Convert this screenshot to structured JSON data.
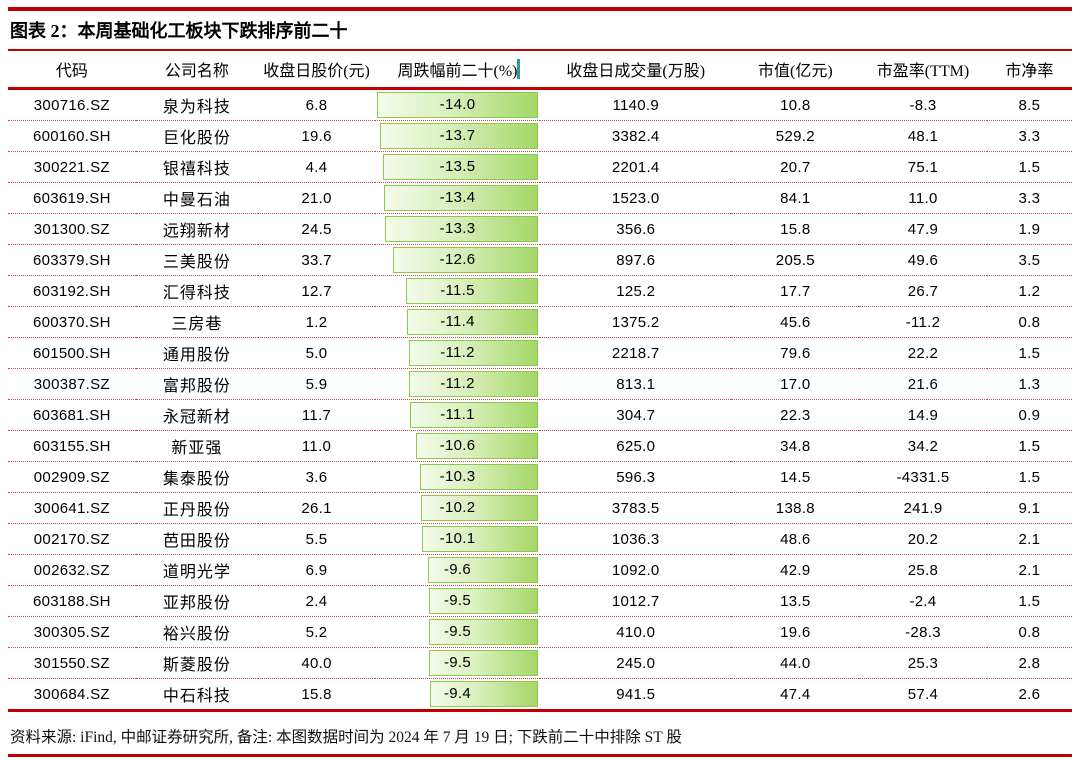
{
  "chart_data": {
    "type": "table",
    "title": "图表 2：本周基础化工板块下跌排序前二十",
    "columns": [
      "代码",
      "公司名称",
      "收盘日股价(元)",
      "周跌幅前二十(%)",
      "收盘日成交量(万股)",
      "市值(亿元)",
      "市盈率(TTM)",
      "市净率"
    ],
    "bar_column_index": 3,
    "bar_scale_max_abs": 14.0,
    "bar_direction": "anchored-right-grows-left",
    "rows": [
      [
        "300716.SZ",
        "泉为科技",
        "6.8",
        "-14.0",
        "1140.9",
        "10.8",
        "-8.3",
        "8.5"
      ],
      [
        "600160.SH",
        "巨化股份",
        "19.6",
        "-13.7",
        "3382.4",
        "529.2",
        "48.1",
        "3.3"
      ],
      [
        "300221.SZ",
        "银禧科技",
        "4.4",
        "-13.5",
        "2201.4",
        "20.7",
        "75.1",
        "1.5"
      ],
      [
        "603619.SH",
        "中曼石油",
        "21.0",
        "-13.4",
        "1523.0",
        "84.1",
        "11.0",
        "3.3"
      ],
      [
        "301300.SZ",
        "远翔新材",
        "24.5",
        "-13.3",
        "356.6",
        "15.8",
        "47.9",
        "1.9"
      ],
      [
        "603379.SH",
        "三美股份",
        "33.7",
        "-12.6",
        "897.6",
        "205.5",
        "49.6",
        "3.5"
      ],
      [
        "603192.SH",
        "汇得科技",
        "12.7",
        "-11.5",
        "125.2",
        "17.7",
        "26.7",
        "1.2"
      ],
      [
        "600370.SH",
        "三房巷",
        "1.2",
        "-11.4",
        "1375.2",
        "45.6",
        "-11.2",
        "0.8"
      ],
      [
        "601500.SH",
        "通用股份",
        "5.0",
        "-11.2",
        "2218.7",
        "79.6",
        "22.2",
        "1.5"
      ],
      [
        "300387.SZ",
        "富邦股份",
        "5.9",
        "-11.2",
        "813.1",
        "17.0",
        "21.6",
        "1.3"
      ],
      [
        "603681.SH",
        "永冠新材",
        "11.7",
        "-11.1",
        "304.7",
        "22.3",
        "14.9",
        "0.9"
      ],
      [
        "603155.SH",
        "新亚强",
        "11.0",
        "-10.6",
        "625.0",
        "34.8",
        "34.2",
        "1.5"
      ],
      [
        "002909.SZ",
        "集泰股份",
        "3.6",
        "-10.3",
        "596.3",
        "14.5",
        "-4331.5",
        "1.5"
      ],
      [
        "300641.SZ",
        "正丹股份",
        "26.1",
        "-10.2",
        "3783.5",
        "138.8",
        "241.9",
        "9.1"
      ],
      [
        "002170.SZ",
        "芭田股份",
        "5.5",
        "-10.1",
        "1036.3",
        "48.6",
        "20.2",
        "2.1"
      ],
      [
        "002632.SZ",
        "道明光学",
        "6.9",
        "-9.6",
        "1092.0",
        "42.9",
        "25.8",
        "2.1"
      ],
      [
        "603188.SH",
        "亚邦股份",
        "2.4",
        "-9.5",
        "1012.7",
        "13.5",
        "-2.4",
        "1.5"
      ],
      [
        "300305.SZ",
        "裕兴股份",
        "5.2",
        "-9.5",
        "410.0",
        "19.6",
        "-28.3",
        "0.8"
      ],
      [
        "301550.SZ",
        "斯菱股份",
        "40.0",
        "-9.5",
        "245.0",
        "44.0",
        "25.3",
        "2.8"
      ],
      [
        "300684.SZ",
        "中石科技",
        "15.8",
        "-9.4",
        "941.5",
        "47.4",
        "57.4",
        "2.6"
      ]
    ]
  },
  "footer": {
    "text": "资料来源: iFind, 中邮证券研究所, 备注: 本图数据时间为 2024 年 7 月 19 日; 下跌前二十中排除 ST 股"
  },
  "colors": {
    "rule_red": "#c00000",
    "dotted_separator_red": "#cf4a4a",
    "bar_border_green": "#8cc750",
    "bar_fill_dark_green": "#a4d767",
    "bar_fill_light_green": "#f4fbeb",
    "header_divider_teal": "#2a9aa3",
    "text_black": "#000000"
  }
}
